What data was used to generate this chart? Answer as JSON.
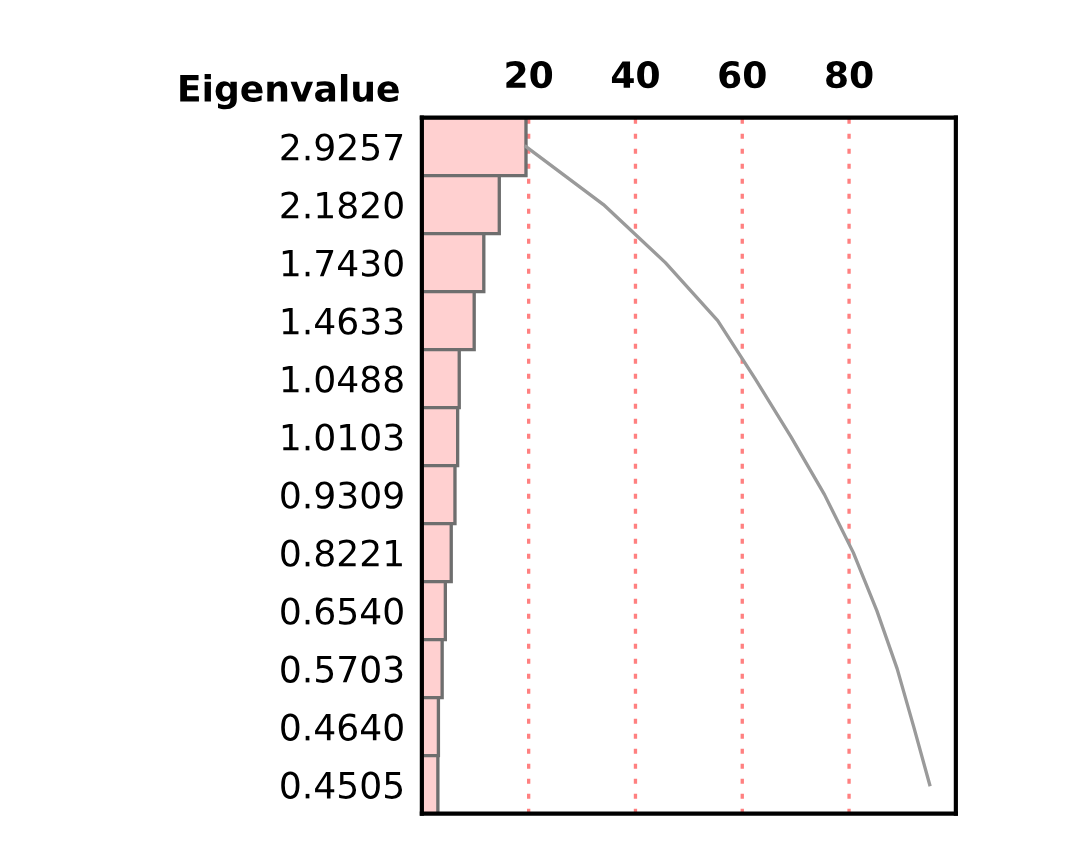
{
  "chart_data": {
    "type": "bar",
    "orientation": "horizontal",
    "ylabel": "Eigenvalue",
    "categories": [
      "2.9257",
      "2.1820",
      "1.7430",
      "1.4633",
      "1.0488",
      "1.0103",
      "0.9309",
      "0.8221",
      "0.6540",
      "0.5703",
      "0.4640",
      "0.4505"
    ],
    "series": [
      {
        "color": "#ffd0d0",
        "values": [
          19.5,
          14.5,
          11.6,
          9.8,
          7.0,
          6.7,
          6.2,
          5.5,
          4.4,
          3.8,
          3.1,
          3.0
        ]
      },
      {
        "type": "line",
        "color": "#9a9a9a",
        "values": [
          19.5,
          34.0,
          45.6,
          55.4,
          62.4,
          69.1,
          75.4,
          80.8,
          85.2,
          89.0,
          92.1,
          95.1
        ]
      }
    ],
    "xlim": [
      0,
      100
    ],
    "xticks": [
      20,
      40,
      60,
      80
    ],
    "grid": "x",
    "marker": "none",
    "line_style": "solid"
  }
}
